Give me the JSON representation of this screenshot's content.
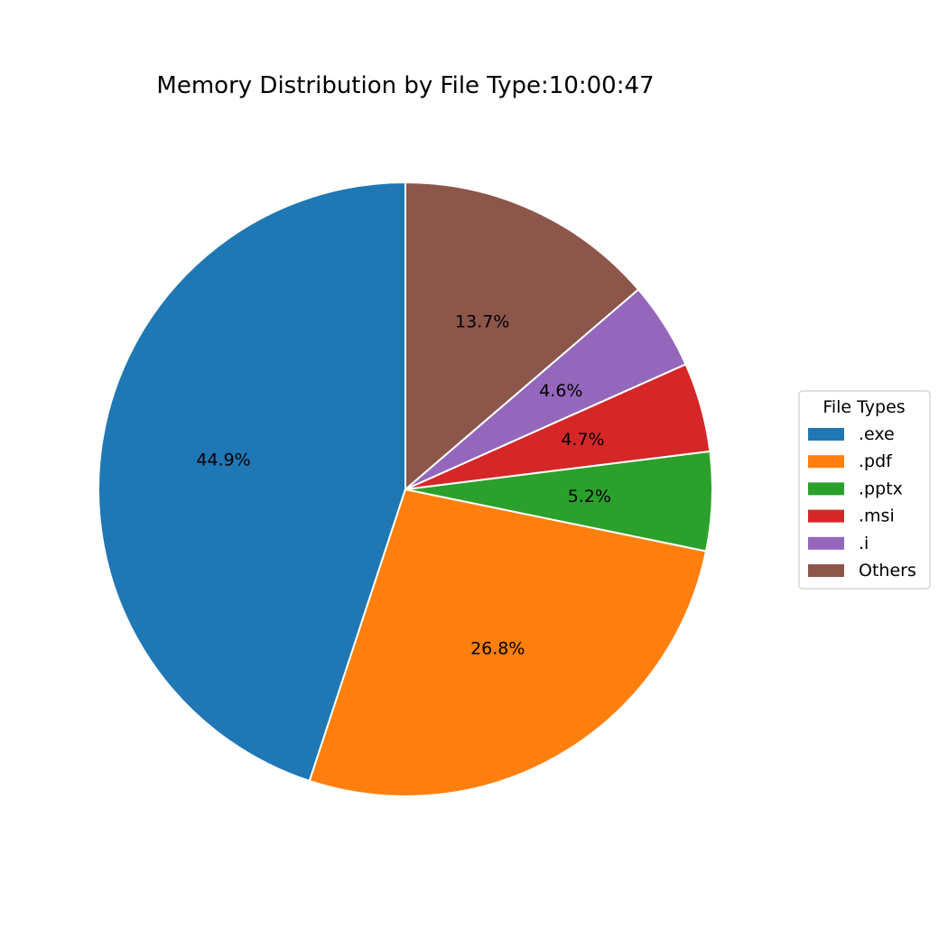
{
  "chart_data": {
    "type": "pie",
    "title": "Memory Distribution by File Type:10:00:47",
    "categories": [
      ".exe",
      ".pdf",
      ".pptx",
      ".msi",
      ".i",
      "Others"
    ],
    "values": [
      44.9,
      26.8,
      5.2,
      4.7,
      4.6,
      13.7
    ],
    "labels": [
      "44.9%",
      "26.8%",
      "5.2%",
      "4.7%",
      "4.6%",
      "13.7%"
    ],
    "colors": [
      "#1f77b4",
      "#ff7f0e",
      "#2ca02c",
      "#d62728",
      "#9467bd",
      "#8c564b"
    ],
    "start_angle_deg": 90,
    "direction": "counterclockwise",
    "legend": {
      "title": "File Types",
      "placement": "center-right"
    }
  }
}
